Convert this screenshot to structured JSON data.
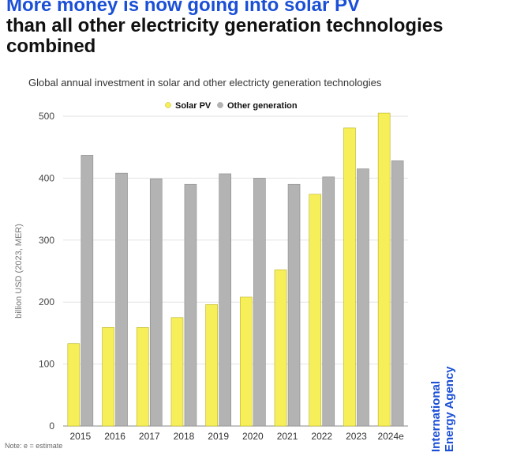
{
  "header": {
    "title_highlight": "More money is now going into solar PV",
    "title_rest": "than all other electricity generation technologies combined",
    "subtitle": "Global annual investment in solar and other electricty generation technologies"
  },
  "footer": {
    "note": "Note: e = estimate"
  },
  "logo": {
    "line1": "International",
    "line2": "Energy Agency",
    "color": "#1a4fd6"
  },
  "chart_data": {
    "type": "bar",
    "ylabel": "billion USD (2023, MER)",
    "ylim": [
      0,
      500
    ],
    "yticks": [
      0,
      100,
      200,
      300,
      400,
      500
    ],
    "grid": true,
    "legend_placement": "top-center",
    "categories": [
      "2015",
      "2016",
      "2017",
      "2018",
      "2019",
      "2020",
      "2021",
      "2022",
      "2023",
      "2024e"
    ],
    "series": [
      {
        "name": "Solar PV",
        "color": "#f7ef5a",
        "stroke": "#b8b020",
        "values": [
          133,
          159,
          159,
          175,
          196,
          208,
          252,
          374,
          481,
          505
        ]
      },
      {
        "name": "Other generation",
        "color": "#b3b3b3",
        "stroke": "#8a8a8a",
        "values": [
          437,
          408,
          399,
          390,
          407,
          400,
          390,
          402,
          415,
          428
        ]
      }
    ]
  }
}
